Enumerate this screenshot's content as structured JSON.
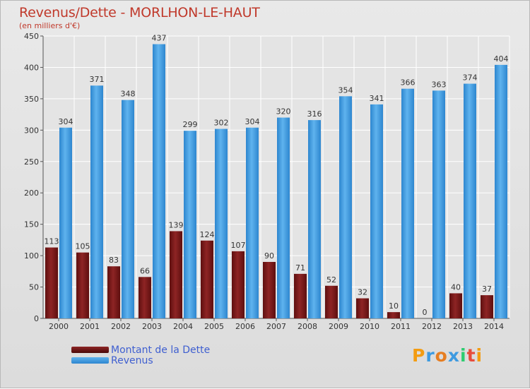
{
  "chart_data": {
    "type": "bar",
    "title": "Revenus/Dette - MORLHON-LE-HAUT",
    "subtitle": "(en milliers d'€)",
    "categories": [
      "2000",
      "2001",
      "2002",
      "2003",
      "2004",
      "2005",
      "2006",
      "2007",
      "2008",
      "2009",
      "2010",
      "2011",
      "2012",
      "2013",
      "2014"
    ],
    "series": [
      {
        "name": "Montant de la Dette",
        "color": "#7b1a1a",
        "values": [
          113,
          105,
          83,
          66,
          139,
          124,
          107,
          90,
          71,
          52,
          32,
          10,
          0,
          40,
          37
        ]
      },
      {
        "name": "Revenus",
        "color": "#3d9ae0",
        "values": [
          304,
          371,
          348,
          437,
          299,
          302,
          304,
          320,
          316,
          354,
          341,
          366,
          363,
          374,
          404
        ]
      }
    ],
    "ylim": [
      0,
      450
    ],
    "yticks": [
      0,
      50,
      100,
      150,
      200,
      250,
      300,
      350,
      400,
      450
    ],
    "grid": true,
    "legend": "bottom-left"
  },
  "logo": {
    "letters": [
      "P",
      "r",
      "o",
      "x",
      "i",
      "t",
      "i"
    ],
    "colors": [
      "#f39c12",
      "#3d9ae0",
      "#e67e22",
      "#3d9ae0",
      "#2ecc71",
      "#e74c3c",
      "#f39c12"
    ]
  }
}
